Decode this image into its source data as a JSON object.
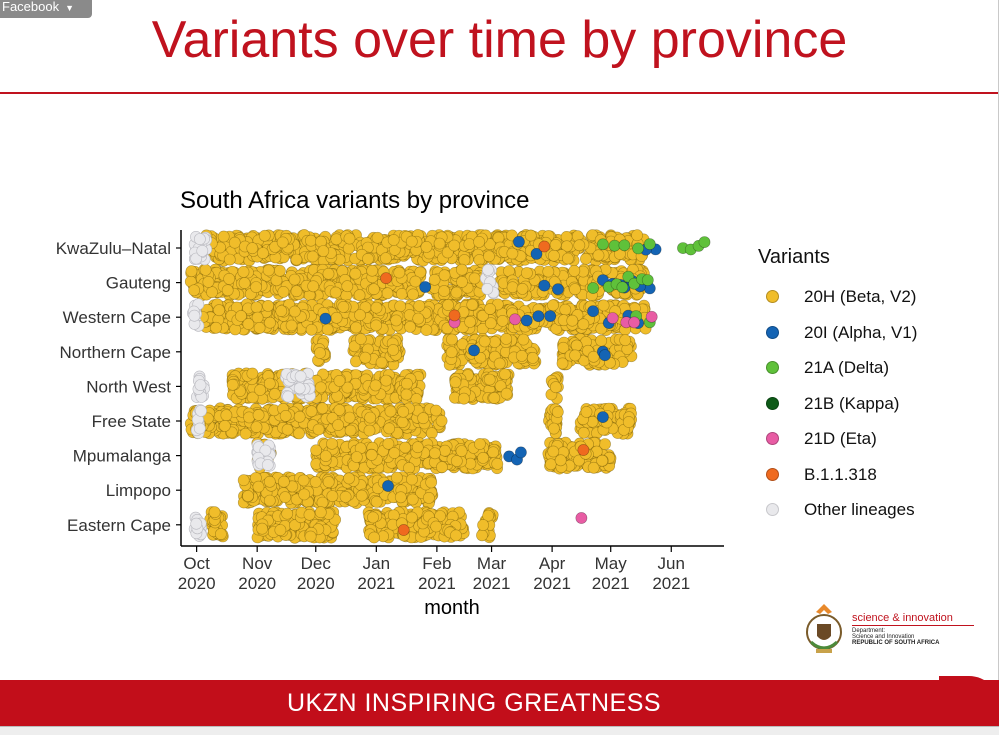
{
  "overlay": {
    "tab_label": "Facebook"
  },
  "slide": {
    "title": "Variants over time by province",
    "footer": "UKZN INSPIRING GREATNESS"
  },
  "logo": {
    "name": "science & innovation",
    "dept_line1": "Department:",
    "dept_line2": "Science and Innovation",
    "country": "REPUBLIC OF SOUTH AFRICA"
  },
  "colors": {
    "brand_red": "#c0121e",
    "20H (Beta, V2)": "#f0bd2a",
    "20I (Alpha, V1)": "#1464b4",
    "21A (Delta)": "#5fc13a",
    "21B (Kappa)": "#0d5a17",
    "21D (Eta)": "#e85ca4",
    "B.1.1.318": "#ef6a1f",
    "Other lineages": "#e9e9ec"
  },
  "legend": {
    "title": "Variants",
    "items": [
      {
        "label": "20H (Beta, V2)",
        "color": "#f0bd2a"
      },
      {
        "label": "20I (Alpha, V1)",
        "color": "#1464b4"
      },
      {
        "label": "21A (Delta)",
        "color": "#5fc13a"
      },
      {
        "label": "21B (Kappa)",
        "color": "#0d5a17"
      },
      {
        "label": "21D (Eta)",
        "color": "#e85ca4"
      },
      {
        "label": "B.1.1.318",
        "color": "#ef6a1f"
      },
      {
        "label": "Other lineages",
        "color": "#e9e9ec"
      }
    ]
  },
  "chart_data": {
    "type": "scatter",
    "title": "South Africa variants by province",
    "xlabel": "month",
    "ylabel": "",
    "x_ticks": [
      {
        "date": "2020-10-01",
        "label": [
          "Oct",
          "2020"
        ]
      },
      {
        "date": "2020-11-01",
        "label": [
          "Nov",
          "2020"
        ]
      },
      {
        "date": "2020-12-01",
        "label": [
          "Dec",
          "2020"
        ]
      },
      {
        "date": "2021-01-01",
        "label": [
          "Jan",
          "2021"
        ]
      },
      {
        "date": "2021-02-01",
        "label": [
          "Feb",
          "2021"
        ]
      },
      {
        "date": "2021-03-01",
        "label": [
          "Mar",
          "2021"
        ]
      },
      {
        "date": "2021-04-01",
        "label": [
          "Apr",
          "2021"
        ]
      },
      {
        "date": "2021-05-01",
        "label": [
          "May",
          "2021"
        ]
      },
      {
        "date": "2021-06-01",
        "label": [
          "Jun",
          "2021"
        ]
      }
    ],
    "xlim": [
      "2020-09-23",
      "2021-06-28"
    ],
    "categories": [
      "KwaZulu–Natal",
      "Gauteng",
      "Western Cape",
      "Northern Cape",
      "North West",
      "Free State",
      "Mpumalanga",
      "Limpopo",
      "Eastern Cape"
    ],
    "series": [
      {
        "name": "20H (Beta, V2)",
        "values": [
          {
            "province": "KwaZulu–Natal",
            "ranges": [
              [
                "2020-10-05",
                "2021-05-18"
              ]
            ]
          },
          {
            "province": "Gauteng",
            "ranges": [
              [
                "2020-09-28",
                "2021-01-25"
              ],
              [
                "2021-01-29",
                "2021-02-24"
              ],
              [
                "2021-03-05",
                "2021-05-18"
              ]
            ]
          },
          {
            "province": "Western Cape",
            "ranges": [
              [
                "2020-10-04",
                "2021-05-19"
              ]
            ]
          },
          {
            "province": "Northern Cape",
            "ranges": [
              [
                "2020-12-01",
                "2020-12-06"
              ],
              [
                "2020-12-20",
                "2021-01-13"
              ],
              [
                "2021-02-06",
                "2021-03-24"
              ],
              [
                "2021-04-06",
                "2021-05-12"
              ]
            ]
          },
          {
            "province": "North West",
            "ranges": [
              [
                "2020-10-19",
                "2021-01-24"
              ],
              [
                "2021-02-10",
                "2021-03-10"
              ],
              [
                "2021-03-31",
                "2021-04-04"
              ]
            ]
          },
          {
            "province": "Free State",
            "ranges": [
              [
                "2020-09-28",
                "2021-02-04"
              ],
              [
                "2021-03-29",
                "2021-04-04"
              ],
              [
                "2021-04-15",
                "2021-05-12"
              ]
            ]
          },
          {
            "province": "Mpumalanga",
            "ranges": [
              [
                "2020-11-01",
                "2020-11-08"
              ],
              [
                "2020-12-01",
                "2021-03-04"
              ],
              [
                "2021-03-30",
                "2021-05-01"
              ]
            ]
          },
          {
            "province": "Limpopo",
            "ranges": [
              [
                "2020-10-25",
                "2021-01-30"
              ]
            ]
          },
          {
            "province": "Eastern Cape",
            "ranges": [
              [
                "2020-10-07",
                "2020-10-15"
              ],
              [
                "2020-11-01",
                "2020-12-11"
              ],
              [
                "2020-12-28",
                "2021-02-15"
              ],
              [
                "2021-02-24",
                "2021-03-02"
              ]
            ]
          }
        ]
      },
      {
        "name": "20I (Alpha, V1)",
        "points": [
          [
            "KwaZulu–Natal",
            "2021-03-15"
          ],
          [
            "KwaZulu–Natal",
            "2021-03-24"
          ],
          [
            "KwaZulu–Natal",
            "2021-05-24"
          ],
          [
            "KwaZulu–Natal",
            "2021-05-19"
          ],
          [
            "Gauteng",
            "2021-01-26"
          ],
          [
            "Gauteng",
            "2021-03-28"
          ],
          [
            "Gauteng",
            "2021-04-27"
          ],
          [
            "Gauteng",
            "2021-05-02"
          ],
          [
            "Gauteng",
            "2021-05-08"
          ],
          [
            "Gauteng",
            "2021-05-12"
          ],
          [
            "Gauteng",
            "2021-05-18"
          ],
          [
            "Gauteng",
            "2021-05-21"
          ],
          [
            "Gauteng",
            "2021-05-06"
          ],
          [
            "Gauteng",
            "2021-05-16"
          ],
          [
            "Gauteng",
            "2021-04-04"
          ],
          [
            "Western Cape",
            "2020-12-06"
          ],
          [
            "Western Cape",
            "2021-03-19"
          ],
          [
            "Western Cape",
            "2021-03-25"
          ],
          [
            "Western Cape",
            "2021-03-31"
          ],
          [
            "Western Cape",
            "2021-04-22"
          ],
          [
            "Western Cape",
            "2021-04-30"
          ],
          [
            "Western Cape",
            "2021-05-10"
          ],
          [
            "Western Cape",
            "2021-05-15"
          ],
          [
            "Northern Cape",
            "2021-02-20"
          ],
          [
            "Northern Cape",
            "2021-04-27"
          ],
          [
            "Northern Cape",
            "2021-04-28"
          ],
          [
            "Free State",
            "2021-04-27"
          ],
          [
            "Mpumalanga",
            "2021-03-10"
          ],
          [
            "Mpumalanga",
            "2021-03-14"
          ],
          [
            "Mpumalanga",
            "2021-03-16"
          ],
          [
            "Limpopo",
            "2021-01-07"
          ]
        ]
      },
      {
        "name": "21A (Delta)",
        "points": [
          [
            "KwaZulu–Natal",
            "2021-04-27"
          ],
          [
            "KwaZulu–Natal",
            "2021-05-03"
          ],
          [
            "KwaZulu–Natal",
            "2021-05-08"
          ],
          [
            "KwaZulu–Natal",
            "2021-05-15"
          ],
          [
            "KwaZulu–Natal",
            "2021-05-21"
          ],
          [
            "KwaZulu–Natal",
            "2021-06-07"
          ],
          [
            "KwaZulu–Natal",
            "2021-06-11"
          ],
          [
            "KwaZulu–Natal",
            "2021-06-15"
          ],
          [
            "KwaZulu–Natal",
            "2021-06-18"
          ],
          [
            "Gauteng",
            "2021-04-30"
          ],
          [
            "Gauteng",
            "2021-05-04"
          ],
          [
            "Gauteng",
            "2021-05-07"
          ],
          [
            "Gauteng",
            "2021-05-10"
          ],
          [
            "Gauteng",
            "2021-05-13"
          ],
          [
            "Gauteng",
            "2021-05-17"
          ],
          [
            "Gauteng",
            "2021-05-20"
          ],
          [
            "Gauteng",
            "2021-04-22"
          ],
          [
            "Western Cape",
            "2021-05-14"
          ],
          [
            "Western Cape",
            "2021-05-21"
          ]
        ]
      },
      {
        "name": "21B (Kappa)",
        "points": []
      },
      {
        "name": "21D (Eta)",
        "points": [
          [
            "Western Cape",
            "2021-02-10"
          ],
          [
            "Western Cape",
            "2021-03-13"
          ],
          [
            "Western Cape",
            "2021-05-02"
          ],
          [
            "Western Cape",
            "2021-05-09"
          ],
          [
            "Western Cape",
            "2021-05-13"
          ],
          [
            "Western Cape",
            "2021-05-22"
          ],
          [
            "Eastern Cape",
            "2021-04-16"
          ]
        ]
      },
      {
        "name": "B.1.1.318",
        "points": [
          [
            "KwaZulu–Natal",
            "2021-03-28"
          ],
          [
            "Gauteng",
            "2021-01-06"
          ],
          [
            "Mpumalanga",
            "2021-04-17"
          ],
          [
            "Eastern Cape",
            "2021-01-15"
          ],
          [
            "Western Cape",
            "2021-02-10"
          ]
        ]
      },
      {
        "name": "Other lineages",
        "values": [
          {
            "province": "KwaZulu–Natal",
            "ranges": [
              [
                "2020-09-30",
                "2020-10-06"
              ]
            ]
          },
          {
            "province": "Gauteng",
            "ranges": [
              [
                "2021-02-26",
                "2021-03-02"
              ]
            ]
          },
          {
            "province": "Western Cape",
            "ranges": [
              [
                "2020-09-29",
                "2020-10-02"
              ]
            ]
          },
          {
            "province": "North West",
            "ranges": [
              [
                "2020-10-01",
                "2020-10-05"
              ],
              [
                "2020-11-15",
                "2020-11-28"
              ]
            ]
          },
          {
            "province": "Free State",
            "ranges": [
              [
                "2020-10-01",
                "2020-10-04"
              ]
            ]
          },
          {
            "province": "Mpumalanga",
            "ranges": [
              [
                "2020-11-01",
                "2020-11-08"
              ]
            ]
          },
          {
            "province": "Eastern Cape",
            "ranges": [
              [
                "2020-09-30",
                "2020-10-04"
              ]
            ]
          }
        ]
      }
    ],
    "legend_position": "right",
    "grid": false
  }
}
